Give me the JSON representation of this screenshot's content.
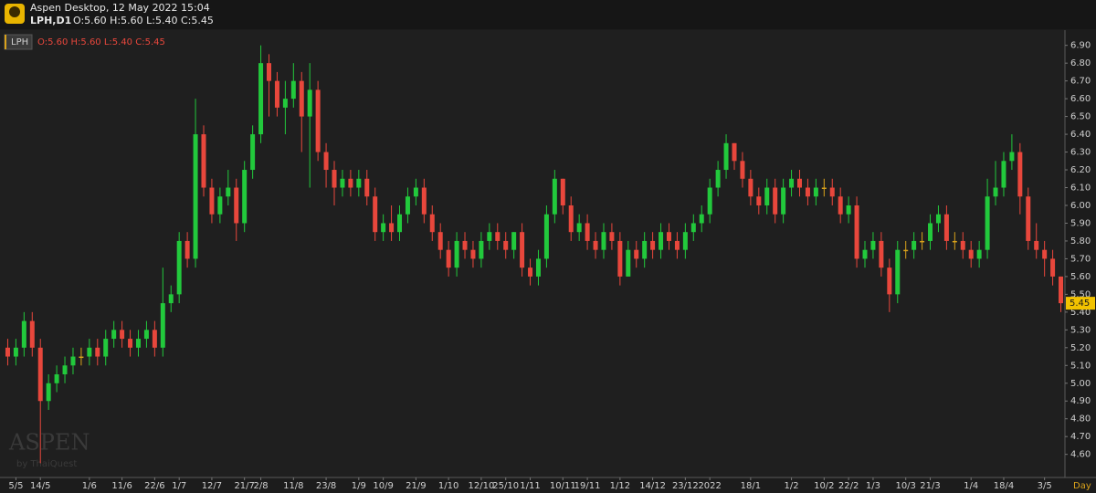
{
  "header": {
    "title": "Aspen Desktop, 12 May 2022 15:04",
    "symbol": "LPH,D1",
    "ohlc": "O:5.60 H:5.60 L:5.40 C:5.45"
  },
  "legend": {
    "symbol": "LPH",
    "ohlc": "O:5.60 H:5.60 L:5.40 C:5.45"
  },
  "watermark": {
    "brand": "ASPEN",
    "by": "by ThaiQuest"
  },
  "timeframe": "Day",
  "chart_data": {
    "type": "candlestick",
    "up_color": "#22c93c",
    "down_color": "#e8473c",
    "flat_color": "#d9a21b",
    "xlim": [
      0,
      130
    ],
    "xticks": [
      {
        "value": 1,
        "label": "5/5"
      },
      {
        "value": 4,
        "label": "14/5"
      },
      {
        "value": 10,
        "label": "1/6"
      },
      {
        "value": 14,
        "label": "11/6"
      },
      {
        "value": 18,
        "label": "22/6"
      },
      {
        "value": 21,
        "label": "1/7"
      },
      {
        "value": 25,
        "label": "12/7"
      },
      {
        "value": 29,
        "label": "21/7"
      },
      {
        "value": 31,
        "label": "2/8"
      },
      {
        "value": 35,
        "label": "11/8"
      },
      {
        "value": 39,
        "label": "23/8"
      },
      {
        "value": 43,
        "label": "1/9"
      },
      {
        "value": 46,
        "label": "10/9"
      },
      {
        "value": 50,
        "label": "21/9"
      },
      {
        "value": 54,
        "label": "1/10"
      },
      {
        "value": 58,
        "label": "12/10"
      },
      {
        "value": 61,
        "label": "25/10"
      },
      {
        "value": 64,
        "label": "1/11"
      },
      {
        "value": 68,
        "label": "10/11"
      },
      {
        "value": 71,
        "label": "19/11"
      },
      {
        "value": 75,
        "label": "1/12"
      },
      {
        "value": 79,
        "label": "14/12"
      },
      {
        "value": 83,
        "label": "23/12"
      },
      {
        "value": 86,
        "label": "2022"
      },
      {
        "value": 91,
        "label": "18/1"
      },
      {
        "value": 96,
        "label": "1/2"
      },
      {
        "value": 100,
        "label": "10/2"
      },
      {
        "value": 103,
        "label": "22/2"
      },
      {
        "value": 106,
        "label": "1/3"
      },
      {
        "value": 110,
        "label": "10/3"
      },
      {
        "value": 113,
        "label": "21/3"
      },
      {
        "value": 118,
        "label": "1/4"
      },
      {
        "value": 122,
        "label": "18/4"
      },
      {
        "value": 127,
        "label": "3/5"
      }
    ],
    "ylim": [
      4.47,
      6.96
    ],
    "yticks": [
      {
        "value": 4.6,
        "label": "4.60"
      },
      {
        "value": 4.7,
        "label": "4.70"
      },
      {
        "value": 4.8,
        "label": "4.80"
      },
      {
        "value": 4.9,
        "label": "4.90"
      },
      {
        "value": 5.0,
        "label": "5.00"
      },
      {
        "value": 5.1,
        "label": "5.10"
      },
      {
        "value": 5.2,
        "label": "5.20"
      },
      {
        "value": 5.3,
        "label": "5.30"
      },
      {
        "value": 5.4,
        "label": "5.40"
      },
      {
        "value": 5.5,
        "label": "5.50"
      },
      {
        "value": 5.6,
        "label": "5.60"
      },
      {
        "value": 5.7,
        "label": "5.70"
      },
      {
        "value": 5.8,
        "label": "5.80"
      },
      {
        "value": 5.9,
        "label": "5.90"
      },
      {
        "value": 6.0,
        "label": "6.00"
      },
      {
        "value": 6.1,
        "label": "6.10"
      },
      {
        "value": 6.2,
        "label": "6.20"
      },
      {
        "value": 6.3,
        "label": "6.30"
      },
      {
        "value": 6.4,
        "label": "6.40"
      },
      {
        "value": 6.5,
        "label": "6.50"
      },
      {
        "value": 6.6,
        "label": "6.60"
      },
      {
        "value": 6.7,
        "label": "6.70"
      },
      {
        "value": 6.8,
        "label": "6.80"
      },
      {
        "value": 6.9,
        "label": "6.90"
      }
    ],
    "open": [
      5.2,
      5.15,
      5.2,
      5.35,
      5.2,
      4.9,
      5.0,
      5.05,
      5.1,
      5.15,
      5.15,
      5.2,
      5.15,
      5.25,
      5.3,
      5.25,
      5.2,
      5.25,
      5.3,
      5.2,
      5.45,
      5.5,
      5.8,
      5.7,
      6.4,
      6.1,
      5.95,
      6.05,
      6.1,
      5.9,
      6.2,
      6.4,
      6.8,
      6.7,
      6.55,
      6.6,
      6.7,
      6.5,
      6.65,
      6.3,
      6.2,
      6.1,
      6.15,
      6.1,
      6.15,
      6.05,
      5.85,
      5.9,
      5.85,
      5.95,
      6.05,
      6.1,
      5.95,
      5.85,
      5.75,
      5.65,
      5.8,
      5.75,
      5.7,
      5.8,
      5.85,
      5.8,
      5.75,
      5.85,
      5.65,
      5.6,
      5.7,
      5.95,
      6.15,
      6.0,
      5.85,
      5.9,
      5.8,
      5.75,
      5.85,
      5.8,
      5.6,
      5.75,
      5.7,
      5.8,
      5.75,
      5.85,
      5.8,
      5.75,
      5.85,
      5.9,
      5.95,
      6.1,
      6.2,
      6.35,
      6.25,
      6.15,
      6.05,
      6.0,
      6.1,
      5.95,
      6.1,
      6.15,
      6.1,
      6.05,
      6.1,
      6.1,
      6.05,
      5.95,
      6.0,
      5.7,
      5.75,
      5.8,
      5.65,
      5.5,
      5.75,
      5.75,
      5.8,
      5.8,
      5.9,
      5.95,
      5.8,
      5.8,
      5.75,
      5.7,
      5.75,
      6.05,
      6.1,
      6.25,
      6.3,
      6.05,
      5.8,
      5.75,
      5.7,
      5.6
    ],
    "high": [
      5.25,
      5.25,
      5.4,
      5.4,
      5.25,
      5.05,
      5.1,
      5.15,
      5.2,
      5.2,
      5.25,
      5.25,
      5.3,
      5.35,
      5.35,
      5.3,
      5.3,
      5.35,
      5.35,
      5.65,
      5.55,
      5.85,
      5.85,
      6.6,
      6.45,
      6.15,
      6.1,
      6.2,
      6.15,
      6.25,
      6.45,
      6.9,
      6.85,
      6.75,
      6.7,
      6.8,
      6.75,
      6.8,
      6.7,
      6.35,
      6.25,
      6.2,
      6.2,
      6.2,
      6.2,
      6.1,
      5.95,
      6.0,
      6.0,
      6.1,
      6.15,
      6.15,
      6.0,
      5.9,
      5.8,
      5.85,
      5.85,
      5.8,
      5.85,
      5.9,
      5.9,
      5.85,
      5.85,
      5.9,
      5.7,
      5.75,
      6.0,
      6.2,
      6.15,
      6.05,
      5.95,
      5.95,
      5.85,
      5.9,
      5.9,
      5.85,
      5.8,
      5.8,
      5.85,
      5.85,
      5.9,
      5.9,
      5.85,
      5.9,
      5.95,
      6.0,
      6.15,
      6.25,
      6.4,
      6.35,
      6.3,
      6.2,
      6.1,
      6.15,
      6.15,
      6.15,
      6.2,
      6.2,
      6.15,
      6.15,
      6.15,
      6.15,
      6.1,
      6.05,
      6.05,
      5.8,
      5.85,
      5.85,
      5.7,
      5.8,
      5.8,
      5.85,
      5.85,
      5.95,
      6.0,
      6.0,
      5.85,
      5.85,
      5.8,
      5.8,
      6.15,
      6.25,
      6.3,
      6.4,
      6.35,
      6.1,
      5.9,
      5.8,
      5.75,
      5.6
    ],
    "low": [
      5.1,
      5.1,
      5.15,
      5.15,
      4.55,
      4.85,
      4.95,
      5.0,
      5.05,
      5.1,
      5.1,
      5.1,
      5.1,
      5.2,
      5.2,
      5.15,
      5.15,
      5.2,
      5.15,
      5.15,
      5.4,
      5.45,
      5.65,
      5.65,
      6.05,
      5.9,
      5.9,
      6.0,
      5.8,
      5.85,
      6.15,
      6.35,
      6.5,
      6.5,
      6.4,
      6.55,
      6.3,
      6.1,
      6.25,
      6.1,
      6.0,
      6.05,
      6.05,
      6.05,
      6.0,
      5.8,
      5.8,
      5.8,
      5.8,
      5.9,
      6.0,
      5.9,
      5.8,
      5.7,
      5.6,
      5.6,
      5.7,
      5.65,
      5.65,
      5.75,
      5.75,
      5.7,
      5.7,
      5.6,
      5.55,
      5.55,
      5.65,
      5.9,
      5.95,
      5.8,
      5.8,
      5.75,
      5.7,
      5.7,
      5.75,
      5.55,
      5.6,
      5.65,
      5.65,
      5.7,
      5.7,
      5.75,
      5.7,
      5.7,
      5.8,
      5.85,
      5.9,
      6.05,
      6.15,
      6.2,
      6.1,
      6.0,
      5.95,
      5.95,
      5.9,
      5.9,
      6.05,
      6.05,
      6.0,
      6.0,
      6.05,
      6.0,
      5.9,
      5.9,
      5.65,
      5.65,
      5.7,
      5.6,
      5.4,
      5.45,
      5.7,
      5.7,
      5.75,
      5.75,
      5.85,
      5.75,
      5.75,
      5.7,
      5.65,
      5.65,
      5.7,
      6.0,
      6.05,
      6.2,
      5.95,
      5.75,
      5.7,
      5.6,
      5.55,
      5.4
    ],
    "close": [
      5.15,
      5.2,
      5.35,
      5.2,
      4.9,
      5.0,
      5.05,
      5.1,
      5.15,
      5.15,
      5.2,
      5.15,
      5.25,
      5.3,
      5.25,
      5.2,
      5.25,
      5.3,
      5.2,
      5.45,
      5.5,
      5.8,
      5.7,
      6.4,
      6.1,
      5.95,
      6.05,
      6.1,
      5.9,
      6.2,
      6.4,
      6.8,
      6.7,
      6.55,
      6.6,
      6.7,
      6.5,
      6.65,
      6.3,
      6.2,
      6.1,
      6.15,
      6.1,
      6.15,
      6.05,
      5.85,
      5.9,
      5.85,
      5.95,
      6.05,
      6.1,
      5.95,
      5.85,
      5.75,
      5.65,
      5.8,
      5.75,
      5.7,
      5.8,
      5.85,
      5.8,
      5.75,
      5.85,
      5.65,
      5.6,
      5.7,
      5.95,
      6.15,
      6.0,
      5.85,
      5.9,
      5.8,
      5.75,
      5.85,
      5.8,
      5.6,
      5.75,
      5.7,
      5.8,
      5.75,
      5.85,
      5.8,
      5.75,
      5.85,
      5.9,
      5.95,
      6.1,
      6.2,
      6.35,
      6.25,
      6.15,
      6.05,
      6.0,
      6.1,
      5.95,
      6.1,
      6.15,
      6.1,
      6.05,
      6.1,
      6.1,
      6.05,
      5.95,
      6.0,
      5.7,
      5.75,
      5.8,
      5.65,
      5.5,
      5.75,
      5.75,
      5.8,
      5.8,
      5.9,
      5.95,
      5.8,
      5.8,
      5.75,
      5.7,
      5.75,
      6.05,
      6.1,
      6.25,
      6.3,
      6.05,
      5.8,
      5.75,
      5.7,
      5.6,
      5.45
    ]
  }
}
